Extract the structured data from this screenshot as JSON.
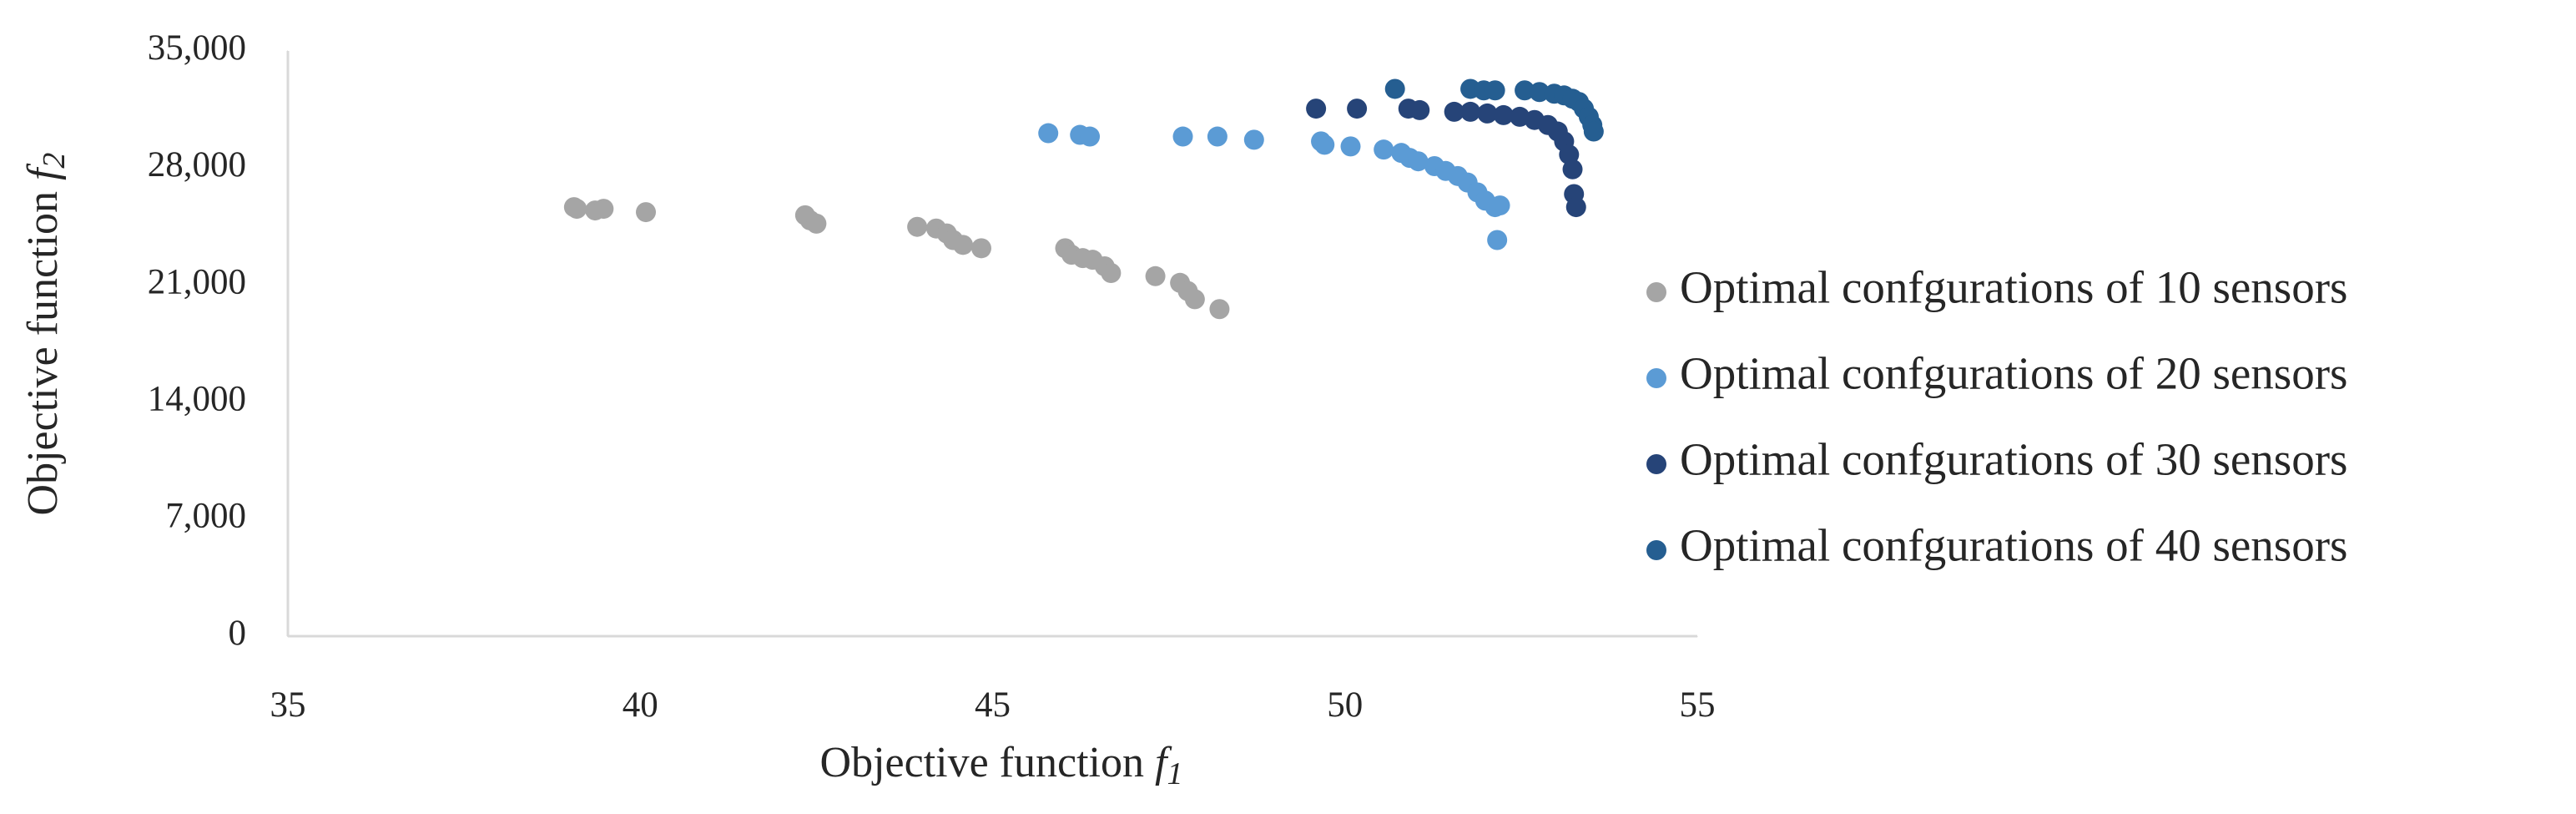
{
  "chart_data": {
    "type": "scatter",
    "xlabel": {
      "text": "Objective function ",
      "var": "f",
      "sub": "1"
    },
    "ylabel": {
      "text": "Objective function ",
      "var": "f",
      "sub": "2"
    },
    "xlim": [
      35,
      55
    ],
    "xticks": [
      35,
      40,
      45,
      50,
      55
    ],
    "ylim": [
      0,
      35000
    ],
    "yticks": [
      0,
      {
        "value": 7000,
        "label": "7,000"
      },
      {
        "value": 14000,
        "label": "14,000"
      },
      {
        "value": 21000,
        "label": "21,000"
      },
      {
        "value": 28000,
        "label": "28,000"
      },
      {
        "value": 35000,
        "label": "35,000"
      }
    ],
    "grid": false,
    "legend": "right",
    "series": [
      {
        "name": "Optimal confgurations of 10 sensors",
        "color": "#a5a5a5",
        "x": [
          39.06,
          39.1,
          39.36,
          39.48,
          40.08,
          42.34,
          42.41,
          42.5,
          43.93,
          44.2,
          44.35,
          44.44,
          44.58,
          44.84,
          46.03,
          46.12,
          46.28,
          46.42,
          46.59,
          46.68,
          47.31,
          47.66,
          47.77,
          47.87,
          48.22
        ],
        "values": [
          25660,
          25560,
          25460,
          25560,
          25360,
          25170,
          24870,
          24670,
          24480,
          24380,
          24085,
          23690,
          23400,
          23200,
          23200,
          22810,
          22610,
          22510,
          22120,
          21720,
          21530,
          21130,
          20640,
          20150,
          19560
        ]
      },
      {
        "name": "Optimal confgurations of 20 sensors",
        "color": "#5b9bd5",
        "x": [
          45.79,
          46.24,
          46.38,
          47.7,
          48.19,
          48.71,
          49.66,
          49.71,
          50.08,
          50.55,
          50.8,
          50.92,
          51.04,
          51.27,
          51.43,
          51.6,
          51.74,
          51.88,
          51.99,
          52.13,
          52.2,
          52.16
        ],
        "values": [
          30080,
          29980,
          29880,
          29880,
          29880,
          29690,
          29590,
          29390,
          29290,
          29100,
          28900,
          28600,
          28400,
          28110,
          27820,
          27520,
          27130,
          26540,
          26050,
          25660,
          25760,
          23690
        ]
      },
      {
        "name": "Optimal confgurations of 30 sensors",
        "color": "#264478",
        "x": [
          49.59,
          50.17,
          50.9,
          51.06,
          51.55,
          51.78,
          52.02,
          52.25,
          52.48,
          52.69,
          52.88,
          53.02,
          53.11,
          53.18,
          53.23,
          53.25,
          53.28
        ],
        "values": [
          31550,
          31550,
          31550,
          31460,
          31360,
          31360,
          31260,
          31160,
          31060,
          30870,
          30570,
          30180,
          29590,
          28800,
          27920,
          26440,
          25660
        ]
      },
      {
        "name": "Optimal confgurations of 40 sensors",
        "color": "#255e91",
        "x": [
          50.71,
          51.78,
          51.97,
          52.13,
          52.55,
          52.76,
          52.97,
          53.11,
          53.23,
          53.32,
          53.39,
          53.46,
          53.51,
          53.53
        ],
        "values": [
          32730,
          32730,
          32640,
          32640,
          32640,
          32540,
          32440,
          32340,
          32140,
          31950,
          31550,
          31060,
          30570,
          30180
        ]
      }
    ]
  }
}
